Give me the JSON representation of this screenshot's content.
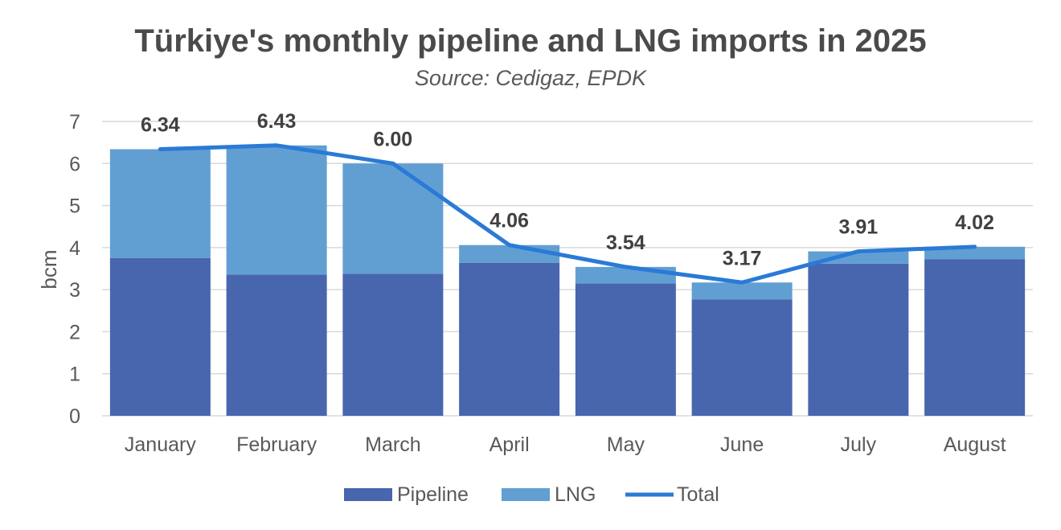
{
  "chart_data": {
    "type": "bar",
    "stacked": true,
    "title": "Türkiye's monthly pipeline and LNG imports in 2025",
    "subtitle": "Source: Cedigaz, EPDK",
    "xlabel": "",
    "ylabel": "bcm",
    "ylim": [
      0,
      7
    ],
    "yticks": [
      0,
      1,
      2,
      3,
      4,
      5,
      6,
      7
    ],
    "grid": true,
    "legend_position": "bottom",
    "categories": [
      "January",
      "February",
      "March",
      "April",
      "May",
      "June",
      "July",
      "August"
    ],
    "series": [
      {
        "name": "Pipeline",
        "type": "bar",
        "color": "#4866ad",
        "values": [
          3.75,
          3.36,
          3.38,
          3.64,
          3.15,
          2.77,
          3.62,
          3.72
        ]
      },
      {
        "name": "LNG",
        "type": "bar",
        "color": "#619fd3",
        "values": [
          2.59,
          3.07,
          2.62,
          0.42,
          0.39,
          0.4,
          0.29,
          0.3
        ]
      },
      {
        "name": "Total",
        "type": "line",
        "color": "#2a7ad6",
        "values": [
          6.34,
          6.43,
          6.0,
          4.06,
          3.54,
          3.17,
          3.91,
          4.02
        ]
      }
    ],
    "data_labels": [
      "6.34",
      "6.43",
      "6.00",
      "4.06",
      "3.54",
      "3.17",
      "3.91",
      "4.02"
    ]
  }
}
